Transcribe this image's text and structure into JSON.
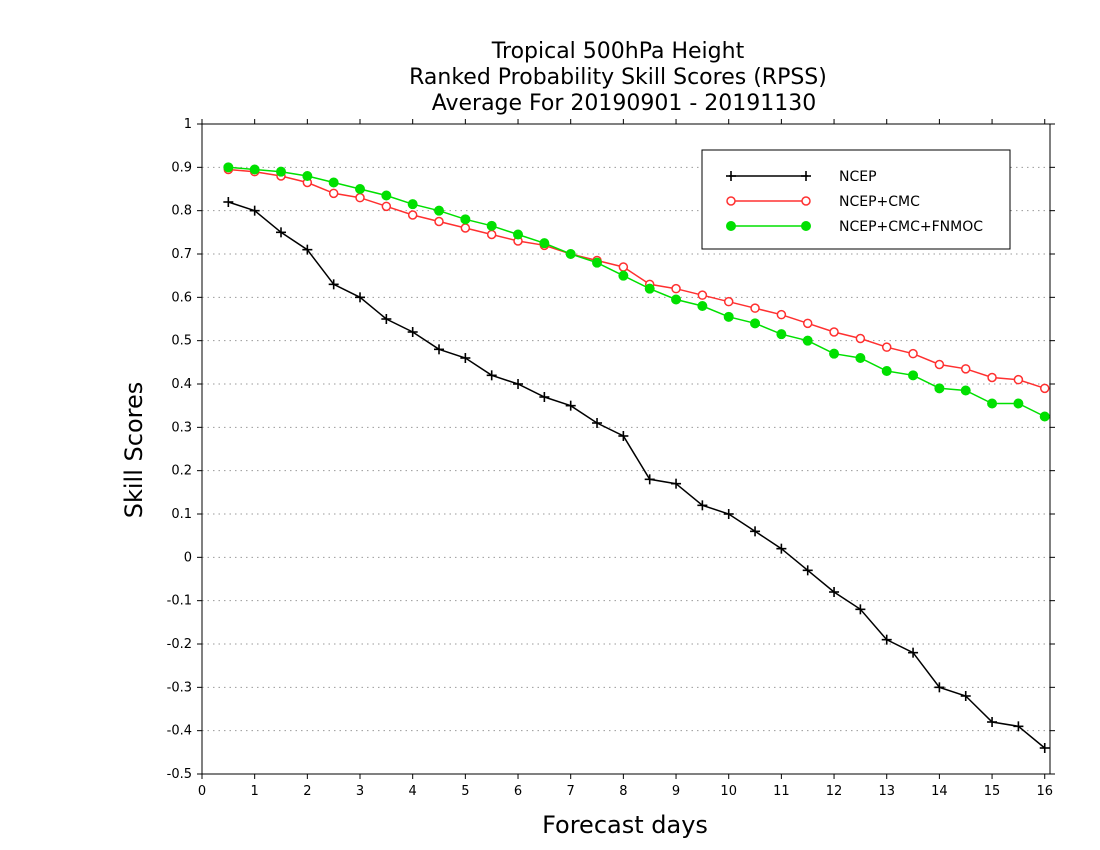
{
  "chart_data": {
    "type": "line",
    "title_lines": [
      "Tropical 500hPa Height",
      "Ranked Probability Skill Scores (RPSS)",
      "Average For 20190901 - 20191130"
    ],
    "xlabel": "Forecast days",
    "ylabel": "Skill Scores",
    "xlim": [
      0,
      16.1
    ],
    "ylim": [
      -0.5,
      1
    ],
    "x_ticks": [
      0,
      1,
      2,
      3,
      4,
      5,
      6,
      7,
      8,
      9,
      10,
      11,
      12,
      13,
      14,
      15,
      16
    ],
    "y_ticks": [
      -0.5,
      -0.4,
      -0.3,
      -0.2,
      -0.1,
      0,
      0.1,
      0.2,
      0.3,
      0.4,
      0.5,
      0.6,
      0.7,
      0.8,
      0.9,
      1
    ],
    "y_tick_labels": [
      "-0.5",
      "-0.4",
      "-0.3",
      "-0.2",
      "-0.1",
      "0",
      "0.1",
      "0.2",
      "0.3",
      "0.4",
      "0.5",
      "0.6",
      "0.7",
      "0.8",
      "0.9",
      "1"
    ],
    "grid": "horizontal dotted",
    "legend_position": "top-right",
    "x": [
      0.5,
      1,
      1.5,
      2,
      2.5,
      3,
      3.5,
      4,
      4.5,
      5,
      5.5,
      6,
      6.5,
      7,
      7.5,
      8,
      8.5,
      9,
      9.5,
      10,
      10.5,
      11,
      11.5,
      12,
      12.5,
      13,
      13.5,
      14,
      14.5,
      15,
      15.5,
      16
    ],
    "series": [
      {
        "name": "NCEP",
        "color": "#000000",
        "marker": "plus",
        "values": [
          0.82,
          0.8,
          0.75,
          0.71,
          0.63,
          0.6,
          0.55,
          0.52,
          0.48,
          0.46,
          0.42,
          0.4,
          0.37,
          0.35,
          0.31,
          0.28,
          0.18,
          0.17,
          0.12,
          0.1,
          0.06,
          0.02,
          -0.03,
          -0.08,
          -0.12,
          -0.19,
          -0.22,
          -0.3,
          -0.32,
          -0.38,
          -0.39,
          -0.44
        ]
      },
      {
        "name": "NCEP+CMC",
        "color": "#ff3030",
        "marker": "open-circle",
        "values": [
          0.895,
          0.89,
          0.88,
          0.865,
          0.84,
          0.83,
          0.81,
          0.79,
          0.775,
          0.76,
          0.745,
          0.73,
          0.72,
          0.7,
          0.685,
          0.67,
          0.63,
          0.62,
          0.605,
          0.59,
          0.575,
          0.56,
          0.54,
          0.52,
          0.505,
          0.485,
          0.47,
          0.445,
          0.435,
          0.415,
          0.41,
          0.39
        ]
      },
      {
        "name": "NCEP+CMC+FNMOC",
        "color": "#00e000",
        "marker": "filled-circle",
        "values": [
          0.9,
          0.895,
          0.89,
          0.88,
          0.865,
          0.85,
          0.835,
          0.815,
          0.8,
          0.78,
          0.765,
          0.745,
          0.725,
          0.7,
          0.68,
          0.65,
          0.62,
          0.595,
          0.58,
          0.555,
          0.54,
          0.515,
          0.5,
          0.47,
          0.46,
          0.43,
          0.42,
          0.39,
          0.385,
          0.355,
          0.355,
          0.325
        ]
      }
    ]
  }
}
